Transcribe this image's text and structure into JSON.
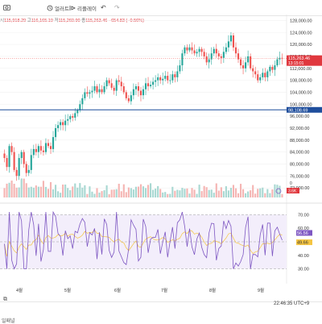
{
  "toolbar": {
    "buttons": [
      {
        "icon": "camera-icon",
        "label": ""
      },
      {
        "icon": "alert-icon",
        "label": "얼러트"
      },
      {
        "icon": "replay-icon",
        "label": "리플레이"
      },
      {
        "icon": "undo-icon",
        "label": "↶"
      },
      {
        "icon": "redo-icon",
        "label": "↷"
      }
    ]
  },
  "ohlc": {
    "open_label": "시",
    "open": "115,918.29",
    "high_label": "고",
    "high": "116,165.19",
    "low_label": "저",
    "low": "115,260.90",
    "close_label": "종",
    "close": "115,263.46",
    "change": "−654.83 (−0.56%)"
  },
  "price_axis": {
    "ticks": [
      "128,000.00",
      "124,000.00",
      "120,000.00",
      "116,000.00",
      "112,000.00",
      "108,000.00",
      "104,000.00",
      "100,000.00",
      "96,000.00",
      "92,000.00",
      "88,000.00",
      "84,000.00",
      "80,000.00",
      "76,000.00",
      "72,000.00"
    ],
    "current_price_tag": "115,263.46",
    "countdown_tag": "13:15:01",
    "horizontal_line_tag": "98,108.69",
    "volume_tag": "3.6K",
    "volume_tag2": "0"
  },
  "rsi_axis": {
    "ticks": [
      "70.00",
      "60.00",
      "50.00",
      "40.00",
      "30.00"
    ],
    "rsi_tag": "56.56",
    "ma_tag": "49.66"
  },
  "time_axis": {
    "labels": [
      "4월",
      "5월",
      "6월",
      "7월",
      "8월",
      "9월"
    ]
  },
  "footer": {
    "timestamp": "22:46:35 UTC+9",
    "left_label": "일패널"
  },
  "colors": {
    "up": "#26a69a",
    "down": "#ef5350",
    "hline": "#1f4e9c",
    "rsi": "#7e57c2",
    "rsi_ma": "#f5c542"
  },
  "chart_data": {
    "type": "candlestick",
    "series": [
      {
        "name": "",
        "values": [
          82000,
          79000,
          86000,
          84000,
          78000,
          76000,
          82000,
          84000,
          80000,
          77000,
          78000,
          83000,
          85000,
          84000,
          86000,
          84500,
          84000,
          87000,
          86000,
          85000,
          89000,
          92000,
          93000,
          94000,
          93000,
          94500,
          95000,
          96000,
          95500,
          97000,
          98000,
          100000,
          102000,
          104000,
          103500,
          104000,
          104500,
          106000,
          104000,
          105000,
          104000,
          106000,
          108000,
          107000,
          105500,
          104500,
          108000,
          107500,
          106000,
          104000,
          102000,
          101000,
          103000,
          105000,
          106000,
          104500,
          103000,
          105000,
          107000,
          106000,
          106500,
          107500,
          108000,
          109000,
          108000,
          108500,
          109500,
          108000,
          108000,
          110000,
          109000,
          111000,
          113000,
          117000,
          119000,
          118000,
          119000,
          118000,
          117000,
          117500,
          118500,
          117500,
          116000,
          114000,
          115000,
          117000,
          118500,
          117000,
          116000,
          115500,
          117500,
          119000,
          121000,
          123000,
          119000,
          117000,
          115000,
          113000,
          112000,
          114000,
          116000,
          112000,
          111000,
          110000,
          108000,
          109000,
          110500,
          109000,
          111000,
          112500,
          111500,
          113000,
          115000,
          115500,
          115263
        ]
      }
    ],
    "ylim": [
      68000,
      130000
    ],
    "horizontal_line": 98108.69,
    "time_labels": [
      "4월",
      "5월",
      "6월",
      "7월",
      "8월",
      "9월"
    ],
    "rsi": {
      "range": [
        25,
        75
      ],
      "current": 56.56,
      "ma": 49.66,
      "bands": [
        70,
        50,
        30
      ]
    }
  }
}
